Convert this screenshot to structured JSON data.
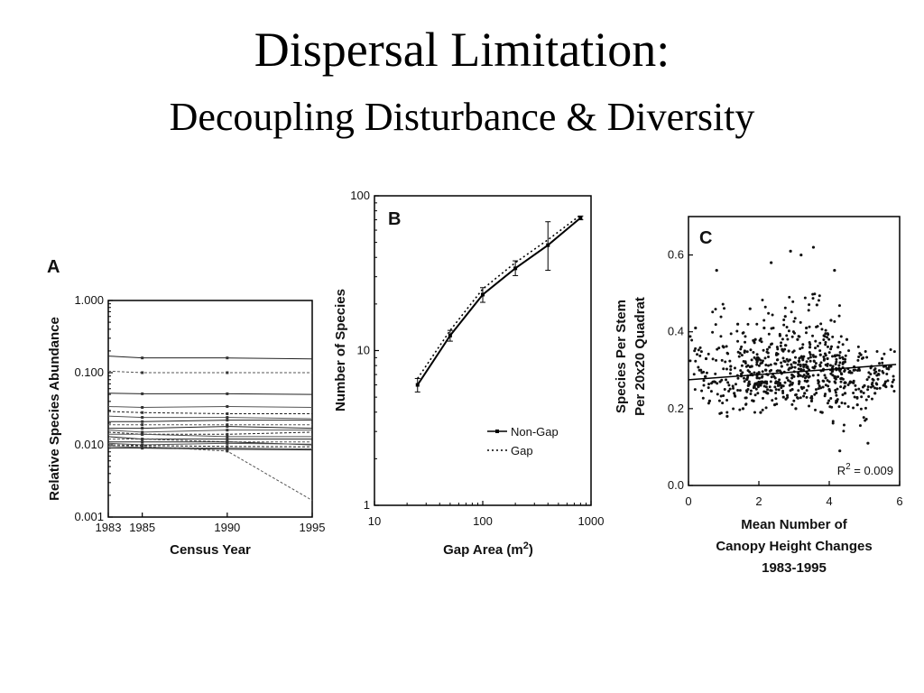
{
  "slide": {
    "title": "Dispersal Limitation:",
    "subtitle": "Decoupling Disturbance & Diversity"
  },
  "chart_data": [
    {
      "panel": "A",
      "type": "line",
      "xlabel": "Census Year",
      "ylabel": "Relative Species Abundance",
      "xscale": "linear",
      "yscale": "log",
      "xlim": [
        1983,
        1995
      ],
      "ylim": [
        0.001,
        1.0
      ],
      "xticks": [
        1983,
        1985,
        1990,
        1995
      ],
      "xtick_labels": [
        "1983",
        "1985",
        "1990",
        "1995"
      ],
      "yticks": [
        0.001,
        0.01,
        0.1,
        1.0
      ],
      "ytick_labels": [
        "0.001",
        "0.010",
        "0.100",
        "1.000"
      ],
      "x": [
        1983,
        1985,
        1990,
        1995
      ],
      "series": [
        {
          "values": [
            0.17,
            0.16,
            0.16,
            0.155
          ]
        },
        {
          "values": [
            0.105,
            0.1,
            0.1,
            0.1
          ]
        },
        {
          "values": [
            0.052,
            0.051,
            0.051,
            0.05
          ]
        },
        {
          "values": [
            0.034,
            0.033,
            0.034,
            0.033
          ]
        },
        {
          "values": [
            0.029,
            0.028,
            0.027,
            0.027
          ]
        },
        {
          "values": [
            0.025,
            0.024,
            0.024,
            0.023
          ]
        },
        {
          "values": [
            0.021,
            0.021,
            0.022,
            0.022
          ]
        },
        {
          "values": [
            0.019,
            0.019,
            0.019,
            0.019
          ]
        },
        {
          "values": [
            0.017,
            0.017,
            0.018,
            0.017
          ]
        },
        {
          "values": [
            0.016,
            0.015,
            0.016,
            0.016
          ]
        },
        {
          "values": [
            0.015,
            0.014,
            0.014,
            0.015
          ]
        },
        {
          "values": [
            0.014,
            0.014,
            0.013,
            0.013
          ]
        },
        {
          "values": [
            0.013,
            0.012,
            0.012,
            0.012
          ]
        },
        {
          "values": [
            0.012,
            0.012,
            0.011,
            0.011
          ]
        },
        {
          "values": [
            0.011,
            0.011,
            0.011,
            0.01
          ]
        },
        {
          "values": [
            0.0105,
            0.01,
            0.0105,
            0.0102
          ]
        },
        {
          "values": [
            0.01,
            0.0098,
            0.0095,
            0.0094
          ]
        },
        {
          "values": [
            0.0095,
            0.0092,
            0.009,
            0.0088
          ]
        },
        {
          "values": [
            0.009,
            0.009,
            0.0087,
            0.0085
          ]
        },
        {
          "values": [
            0.0095,
            0.0095,
            0.0082,
            0.0017
          ]
        }
      ]
    },
    {
      "panel": "B",
      "type": "line",
      "xlabel": "Gap Area (m²)",
      "ylabel": "Number of Species",
      "xscale": "log",
      "yscale": "log",
      "xlim": [
        10,
        1000
      ],
      "ylim": [
        1,
        100
      ],
      "xticks": [
        10,
        100,
        1000
      ],
      "xtick_labels": [
        "10",
        "100",
        "1000"
      ],
      "yticks": [
        1,
        10,
        100
      ],
      "ytick_labels": [
        "1",
        "10",
        "100"
      ],
      "series": [
        {
          "name": "Non-Gap",
          "style": "solid",
          "x": [
            25,
            50,
            100,
            200,
            400,
            800
          ],
          "y": [
            6.0,
            12.5,
            23,
            34,
            48,
            72
          ],
          "err_low": [
            5.4,
            11.5,
            20.5,
            30.5,
            33,
            70
          ],
          "err_high": [
            6.6,
            13.5,
            25.5,
            38,
            68,
            74
          ]
        },
        {
          "name": "Gap",
          "style": "dotted",
          "x": [
            25,
            50,
            100,
            200,
            400,
            800
          ],
          "y": [
            6.6,
            13.5,
            25,
            37,
            52,
            75
          ]
        }
      ],
      "legend": "lower-right"
    },
    {
      "panel": "C",
      "type": "scatter",
      "xlabel": "Mean Number of Canopy Height Changes 1983-1995",
      "xlabel_lines": [
        "Mean Number of",
        "Canopy Height Changes",
        "1983-1995"
      ],
      "ylabel": "Species Per Stem Per 20x20 Quadrat",
      "ylabel_lines": [
        "Species Per Stem",
        "Per 20x20 Quadrat"
      ],
      "xlim": [
        0,
        6
      ],
      "ylim": [
        0.0,
        0.7
      ],
      "xticks": [
        0,
        2,
        4,
        6
      ],
      "xtick_labels": [
        "0",
        "2",
        "4",
        "6"
      ],
      "yticks": [
        0.0,
        0.2,
        0.4,
        0.6
      ],
      "ytick_labels": [
        "0.0",
        "0.2",
        "0.4",
        "0.6"
      ],
      "annotation": "R² = 0.009",
      "regression": {
        "x": [
          0,
          5.9
        ],
        "y": [
          0.275,
          0.315
        ]
      },
      "points": [
        [
          0.2,
          0.41
        ],
        [
          0.35,
          0.3
        ],
        [
          0.5,
          0.33
        ],
        [
          0.6,
          0.22
        ],
        [
          0.8,
          0.56
        ],
        [
          0.9,
          0.27
        ],
        [
          1.0,
          0.36
        ],
        [
          1.1,
          0.18
        ],
        [
          1.2,
          0.31
        ],
        [
          1.3,
          0.24
        ],
        [
          1.4,
          0.42
        ],
        [
          1.5,
          0.29
        ],
        [
          1.55,
          0.2
        ],
        [
          1.6,
          0.35
        ],
        [
          1.7,
          0.26
        ],
        [
          1.75,
          0.46
        ],
        [
          1.8,
          0.31
        ],
        [
          1.85,
          0.22
        ],
        [
          1.9,
          0.38
        ],
        [
          1.95,
          0.28
        ],
        [
          2.0,
          0.33
        ],
        [
          2.05,
          0.19
        ],
        [
          2.1,
          0.27
        ],
        [
          2.15,
          0.41
        ],
        [
          2.2,
          0.3
        ],
        [
          2.25,
          0.24
        ],
        [
          2.3,
          0.36
        ],
        [
          2.35,
          0.58
        ],
        [
          2.4,
          0.29
        ],
        [
          2.45,
          0.21
        ],
        [
          2.5,
          0.34
        ],
        [
          2.55,
          0.26
        ],
        [
          2.6,
          0.39
        ],
        [
          2.65,
          0.31
        ],
        [
          2.7,
          0.23
        ],
        [
          2.75,
          0.44
        ],
        [
          2.8,
          0.28
        ],
        [
          2.85,
          0.35
        ],
        [
          2.9,
          0.61
        ],
        [
          2.95,
          0.25
        ],
        [
          3.0,
          0.32
        ],
        [
          3.05,
          0.2
        ],
        [
          3.1,
          0.38
        ],
        [
          3.15,
          0.27
        ],
        [
          3.2,
          0.6
        ],
        [
          3.25,
          0.33
        ],
        [
          3.3,
          0.24
        ],
        [
          3.35,
          0.41
        ],
        [
          3.4,
          0.29
        ],
        [
          3.45,
          0.36
        ],
        [
          3.5,
          0.22
        ],
        [
          3.55,
          0.62
        ],
        [
          3.6,
          0.31
        ],
        [
          3.65,
          0.47
        ],
        [
          3.7,
          0.27
        ],
        [
          3.75,
          0.34
        ],
        [
          3.8,
          0.19
        ],
        [
          3.85,
          0.39
        ],
        [
          3.9,
          0.28
        ],
        [
          3.95,
          0.33
        ],
        [
          4.0,
          0.25
        ],
        [
          4.05,
          0.43
        ],
        [
          4.1,
          0.3
        ],
        [
          4.15,
          0.56
        ],
        [
          4.2,
          0.22
        ],
        [
          4.25,
          0.36
        ],
        [
          4.3,
          0.09
        ],
        [
          4.35,
          0.29
        ],
        [
          4.4,
          0.32
        ],
        [
          4.45,
          0.24
        ],
        [
          4.5,
          0.38
        ],
        [
          4.6,
          0.27
        ],
        [
          4.7,
          0.3
        ],
        [
          4.8,
          0.21
        ],
        [
          4.9,
          0.34
        ],
        [
          5.0,
          0.26
        ],
        [
          5.1,
          0.11
        ],
        [
          5.2,
          0.31
        ],
        [
          5.3,
          0.24
        ],
        [
          5.4,
          0.29
        ],
        [
          5.5,
          0.33
        ],
        [
          5.6,
          0.27
        ],
        [
          5.75,
          0.31
        ]
      ]
    }
  ]
}
